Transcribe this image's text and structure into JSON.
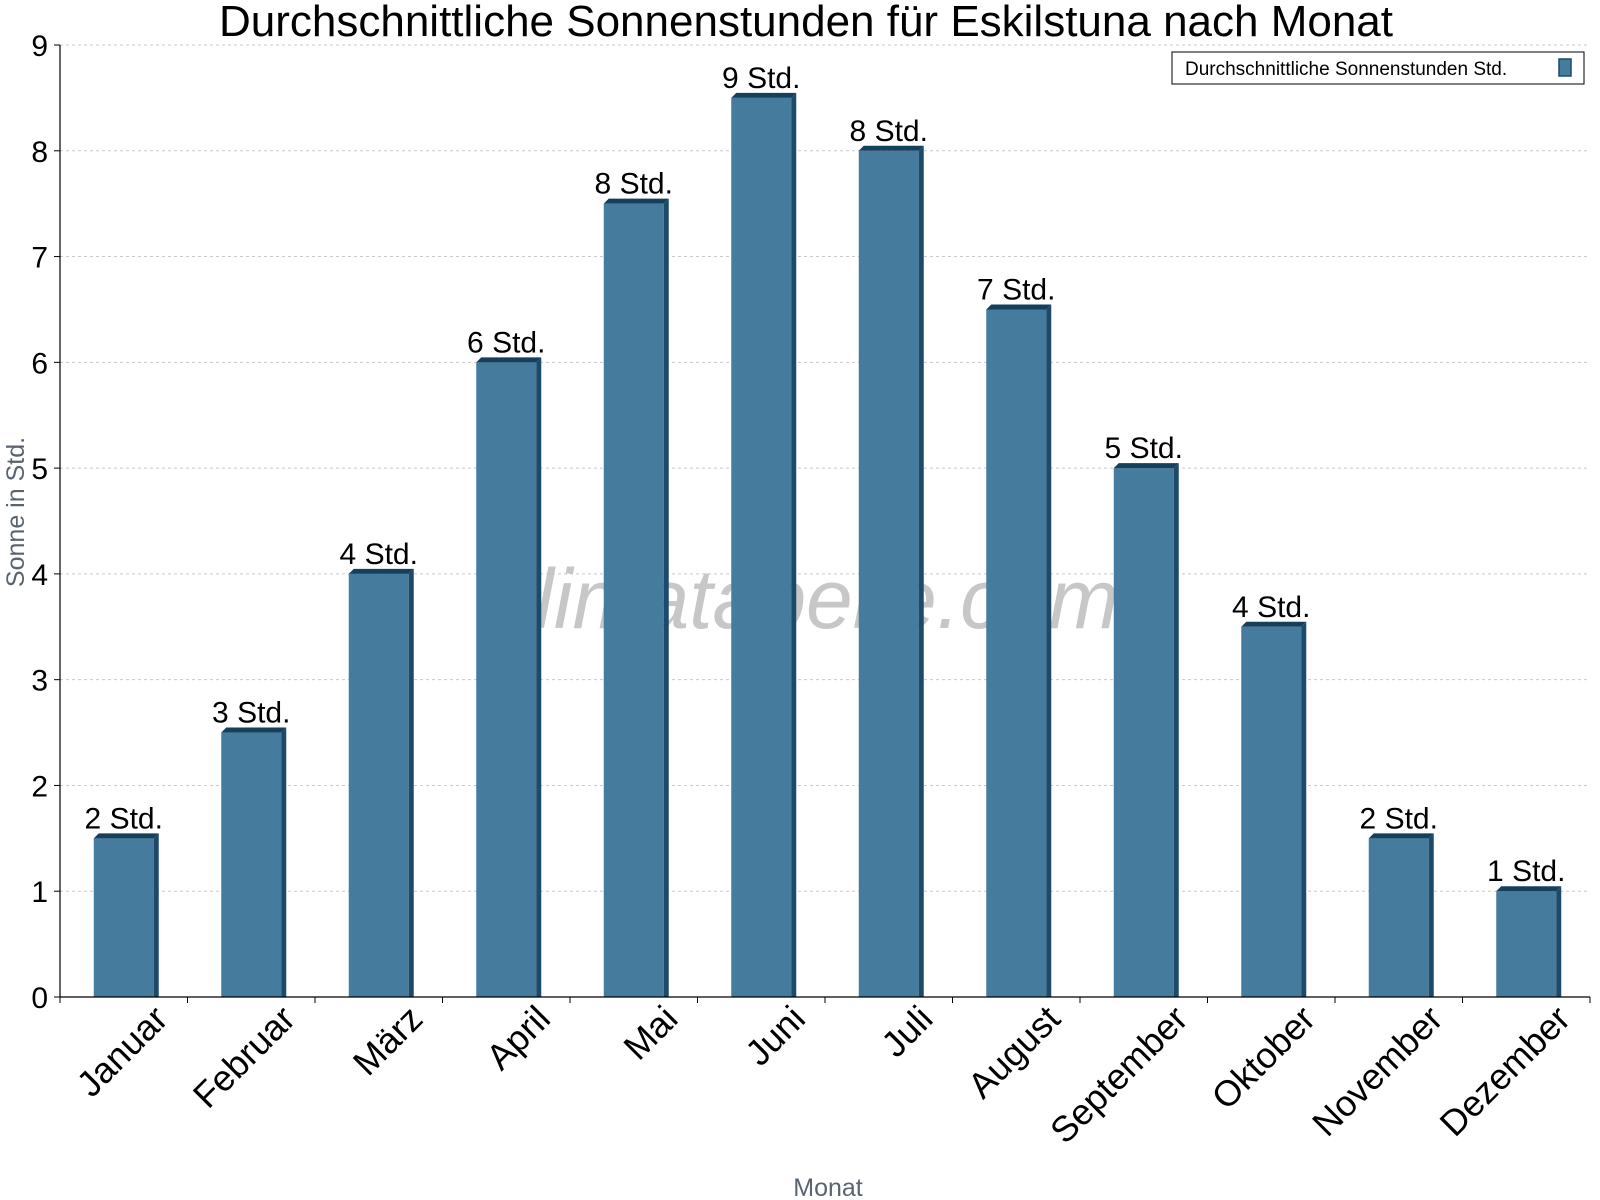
{
  "chart_data": {
    "type": "bar",
    "title": "Durchschnittliche Sonnenstunden für Eskilstuna nach Monat",
    "xlabel": "Monat",
    "ylabel": "Sonne in Std.",
    "ylim": [
      0,
      9
    ],
    "yticks": [
      0,
      1,
      2,
      3,
      4,
      5,
      6,
      7,
      8,
      9
    ],
    "grid": true,
    "legend_position": "top-right",
    "categories": [
      "Januar",
      "Februar",
      "März",
      "April",
      "Mai",
      "Juni",
      "Juli",
      "August",
      "September",
      "Oktober",
      "November",
      "Dezember"
    ],
    "series": [
      {
        "name": "Durchschnittliche Sonnenstunden Std.",
        "color": "#457b9d",
        "values": [
          1.5,
          2.5,
          4.0,
          6.0,
          7.5,
          8.5,
          8.0,
          6.5,
          5.0,
          3.5,
          1.5,
          1.0
        ],
        "labels": [
          "2 Std.",
          "3 Std.",
          "4 Std.",
          "6 Std.",
          "8 Std.",
          "9 Std.",
          "8 Std.",
          "7 Std.",
          "5 Std.",
          "4 Std.",
          "2 Std.",
          "1 Std."
        ]
      }
    ]
  },
  "watermark": "klimatabelle.com"
}
